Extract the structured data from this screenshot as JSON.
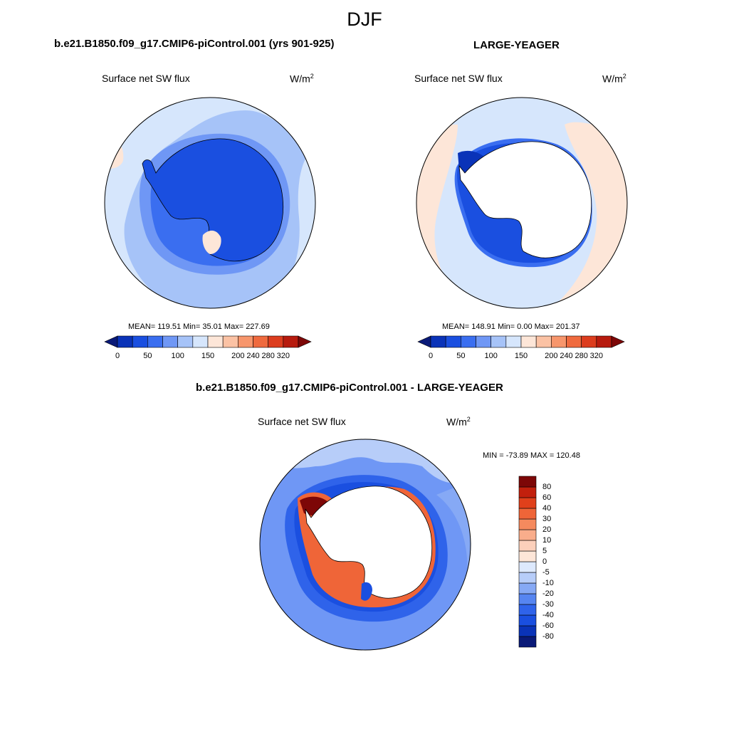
{
  "figure": {
    "title": "DJF",
    "panels": [
      {
        "case_name": "b.e21.B1850.f09_g17.CMIP6-piControl.001 (yrs 901-925)",
        "variable": "Surface net SW flux",
        "units_base": "W/m",
        "units_exp": "2",
        "stats": "MEAN= 119.51  Min=  35.01  Max= 227.69"
      },
      {
        "case_name": "LARGE-YEAGER",
        "variable": "Surface net SW flux",
        "units_base": "W/m",
        "units_exp": "2",
        "stats": "MEAN= 148.91  Min=   0.00  Max= 201.37"
      },
      {
        "case_name": "b.e21.B1850.f09_g17.CMIP6-piControl.001 - LARGE-YEAGER",
        "variable": "Surface net SW flux",
        "units_base": "W/m",
        "units_exp": "2",
        "stats": "MIN = -73.89 MAX = 120.48"
      }
    ]
  },
  "colorbar_abs": {
    "colors": [
      "#0a1a78",
      "#0a33b8",
      "#1a4fe0",
      "#3a6ef0",
      "#6f97f5",
      "#a6c3f8",
      "#d6e6fc",
      "#fde6d8",
      "#fbc2a4",
      "#f7966c",
      "#ef6a3e",
      "#dc3d1e",
      "#b71b0e",
      "#7d0707"
    ],
    "labels": [
      "0",
      "50",
      "100",
      "150",
      "200",
      "240",
      "280",
      "320"
    ]
  },
  "colorbar_diff": {
    "colors": [
      "#0a1a78",
      "#0a33b8",
      "#1a4fe0",
      "#2f63ea",
      "#5685f1",
      "#86a9f5",
      "#b7cdf9",
      "#dde9fd",
      "#fde6d8",
      "#fcd0bb",
      "#f9ad8b",
      "#f58a5e",
      "#ef6538",
      "#e0401b",
      "#c2200d",
      "#7d0707"
    ],
    "labels": [
      "80",
      "60",
      "40",
      "30",
      "20",
      "10",
      "5",
      "0",
      "-5",
      "-10",
      "-20",
      "-30",
      "-40",
      "-60",
      "-80"
    ]
  },
  "colors": {
    "land_mask": "#ffffff",
    "coastline": "#000000",
    "map_border": "#000000"
  }
}
